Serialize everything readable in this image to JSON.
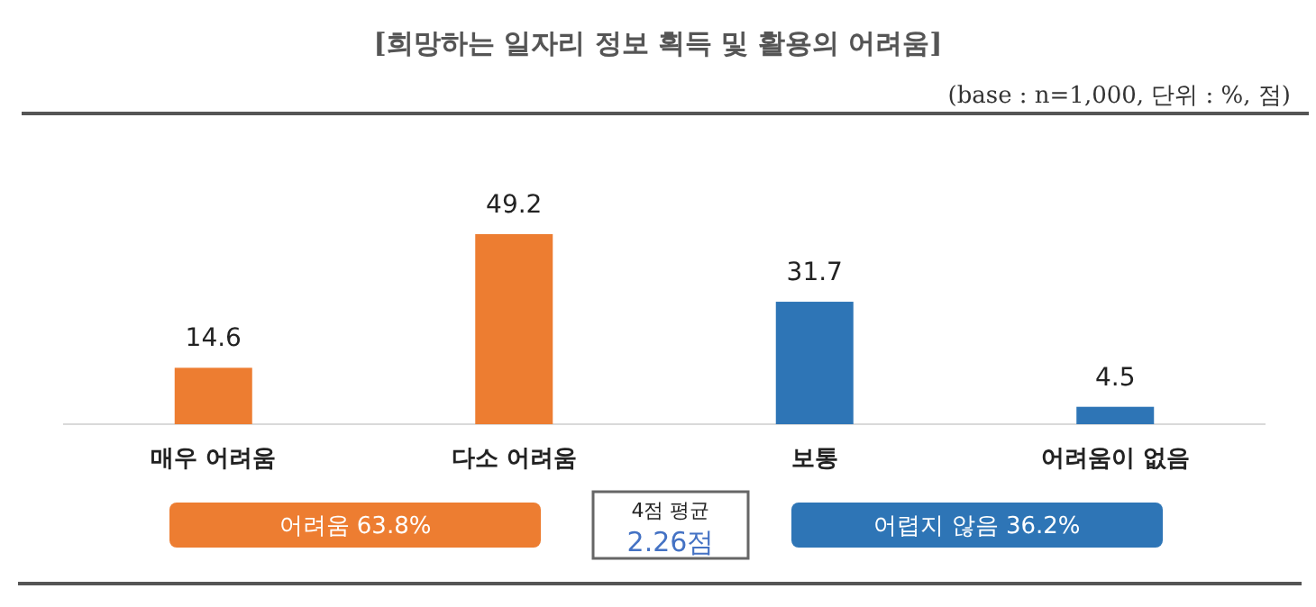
{
  "chart_data": {
    "type": "bar",
    "title": "[희망하는 일자리 정보 획득 및 활용의 어려움]",
    "subtitle": "(base : n=1,000, 단위 : %, 점)",
    "categories": [
      "매우 어려움",
      "다소 어려움",
      "보통",
      "어려움이 없음"
    ],
    "values": [
      14.6,
      49.2,
      31.7,
      4.5
    ],
    "colors": [
      "#ed7d31",
      "#ed7d31",
      "#2e75b6",
      "#2e75b6"
    ],
    "data_labels": true,
    "annotations": [
      "어려움 63.8%",
      "4점 평균",
      "2.26점",
      "어렵지 않음 36.2%"
    ]
  }
}
